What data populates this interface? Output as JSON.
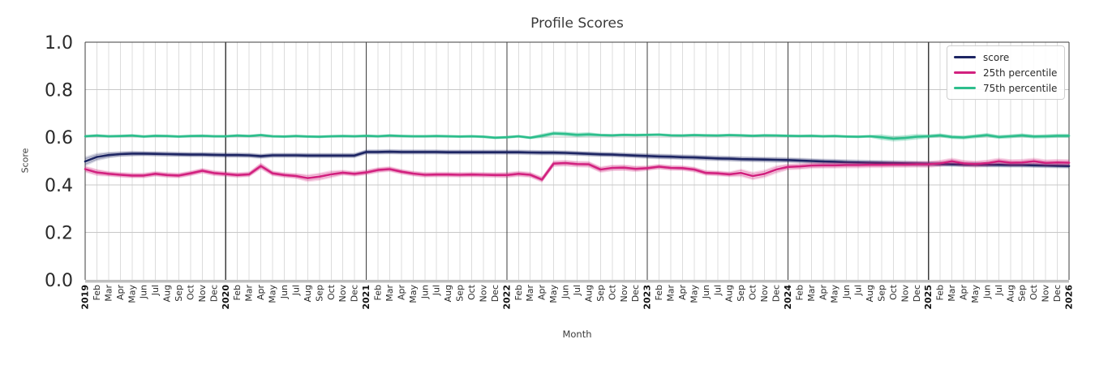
{
  "chart_data": {
    "type": "line",
    "title": "Profile Scores",
    "xlabel": "Month",
    "ylabel": "Score",
    "ylim": [
      0.0,
      1.0
    ],
    "yticks": [
      0.0,
      0.2,
      0.4,
      0.6,
      0.8,
      1.0
    ],
    "grid": true,
    "legend_position": "upper right",
    "x_tick_labels": [
      "2019",
      "Feb",
      "Mar",
      "Apr",
      "May",
      "Jun",
      "Jul",
      "Aug",
      "Sep",
      "Oct",
      "Nov",
      "Dec",
      "2020",
      "Feb",
      "Mar",
      "Apr",
      "May",
      "Jun",
      "Jul",
      "Aug",
      "Sep",
      "Oct",
      "Nov",
      "Dec",
      "2021",
      "Feb",
      "Mar",
      "Apr",
      "May",
      "Jun",
      "Jul",
      "Aug",
      "Sep",
      "Oct",
      "Nov",
      "Dec",
      "2022",
      "Feb",
      "Mar",
      "Apr",
      "May",
      "Jun",
      "Jul",
      "Aug",
      "Sep",
      "Oct",
      "Nov",
      "Dec",
      "2023",
      "Feb",
      "Mar",
      "Apr",
      "May",
      "Jun",
      "Jul",
      "Aug",
      "Sep",
      "Oct",
      "Nov",
      "Dec",
      "2024",
      "Feb",
      "Mar",
      "Apr",
      "May",
      "Jun",
      "Jul",
      "Aug",
      "Sep",
      "Oct",
      "Nov",
      "Dec",
      "2025",
      "Feb",
      "Mar",
      "Apr",
      "May",
      "Jun",
      "Jul",
      "Aug",
      "Sep",
      "Oct",
      "Nov",
      "Dec",
      "2026"
    ],
    "year_tick_indices": [
      0,
      12,
      24,
      36,
      48,
      60,
      72,
      84
    ],
    "series": [
      {
        "name": "score",
        "color": "#1d2563",
        "band_default": 0.011,
        "band_overrides": [
          [
            0,
            1,
            0.021
          ],
          [
            1,
            2,
            0.017
          ],
          [
            2,
            3,
            0.014
          ],
          [
            3,
            5,
            0.012
          ],
          [
            48,
            72,
            0.012
          ]
        ],
        "values": [
          0.498,
          0.517,
          0.525,
          0.529,
          0.531,
          0.531,
          0.53,
          0.529,
          0.528,
          0.527,
          0.527,
          0.526,
          0.525,
          0.525,
          0.524,
          0.52,
          0.524,
          0.524,
          0.524,
          0.523,
          0.523,
          0.523,
          0.523,
          0.523,
          0.538,
          0.538,
          0.539,
          0.538,
          0.538,
          0.538,
          0.538,
          0.537,
          0.537,
          0.537,
          0.537,
          0.537,
          0.537,
          0.537,
          0.536,
          0.535,
          0.535,
          0.534,
          0.532,
          0.53,
          0.528,
          0.527,
          0.525,
          0.523,
          0.521,
          0.519,
          0.518,
          0.516,
          0.515,
          0.513,
          0.511,
          0.51,
          0.508,
          0.507,
          0.506,
          0.505,
          0.504,
          0.502,
          0.5,
          0.498,
          0.497,
          0.495,
          0.494,
          0.493,
          0.492,
          0.491,
          0.49,
          0.489,
          0.488,
          0.487,
          0.486,
          0.485,
          0.485,
          0.484,
          0.484,
          0.483,
          0.483,
          0.482,
          0.481,
          0.48,
          0.479
        ]
      },
      {
        "name": "25th percentile",
        "color": "#d2217f",
        "band_default": 0.012,
        "band_overrides": [
          [
            0,
            2,
            0.015
          ],
          [
            15,
            16,
            0.015
          ],
          [
            19,
            22,
            0.017
          ],
          [
            36,
            40,
            0.013
          ],
          [
            40,
            48,
            0.014
          ],
          [
            56,
            60,
            0.018
          ],
          [
            60,
            72,
            0.014
          ],
          [
            72,
            85,
            0.015
          ]
        ],
        "values": [
          0.466,
          0.452,
          0.446,
          0.442,
          0.439,
          0.439,
          0.446,
          0.441,
          0.439,
          0.448,
          0.459,
          0.449,
          0.445,
          0.441,
          0.444,
          0.479,
          0.448,
          0.441,
          0.437,
          0.428,
          0.434,
          0.444,
          0.451,
          0.446,
          0.452,
          0.462,
          0.466,
          0.455,
          0.447,
          0.442,
          0.443,
          0.443,
          0.442,
          0.443,
          0.442,
          0.441,
          0.441,
          0.446,
          0.442,
          0.422,
          0.489,
          0.491,
          0.487,
          0.486,
          0.464,
          0.471,
          0.472,
          0.467,
          0.47,
          0.476,
          0.471,
          0.47,
          0.464,
          0.45,
          0.448,
          0.444,
          0.45,
          0.437,
          0.446,
          0.464,
          0.475,
          0.477,
          0.481,
          0.482,
          0.482,
          0.483,
          0.483,
          0.484,
          0.484,
          0.485,
          0.485,
          0.486,
          0.486,
          0.49,
          0.499,
          0.49,
          0.487,
          0.491,
          0.499,
          0.493,
          0.494,
          0.499,
          0.492,
          0.494,
          0.493
        ]
      },
      {
        "name": "75th percentile",
        "color": "#2dbe8c",
        "band_default": 0.006,
        "band_overrides": [
          [
            39,
            44,
            0.01
          ],
          [
            68,
            72,
            0.013
          ],
          [
            72,
            85,
            0.009
          ]
        ],
        "values": [
          0.604,
          0.607,
          0.604,
          0.605,
          0.607,
          0.603,
          0.606,
          0.605,
          0.603,
          0.605,
          0.606,
          0.604,
          0.604,
          0.607,
          0.605,
          0.609,
          0.604,
          0.603,
          0.605,
          0.603,
          0.602,
          0.604,
          0.605,
          0.604,
          0.606,
          0.604,
          0.607,
          0.605,
          0.604,
          0.604,
          0.605,
          0.604,
          0.603,
          0.604,
          0.602,
          0.598,
          0.6,
          0.604,
          0.598,
          0.606,
          0.616,
          0.614,
          0.61,
          0.612,
          0.609,
          0.608,
          0.61,
          0.609,
          0.61,
          0.611,
          0.608,
          0.607,
          0.609,
          0.608,
          0.607,
          0.609,
          0.608,
          0.606,
          0.608,
          0.607,
          0.606,
          0.605,
          0.606,
          0.604,
          0.605,
          0.603,
          0.602,
          0.604,
          0.6,
          0.594,
          0.597,
          0.602,
          0.604,
          0.608,
          0.601,
          0.599,
          0.604,
          0.609,
          0.601,
          0.604,
          0.608,
          0.603,
          0.604,
          0.606,
          0.606
        ]
      }
    ],
    "style": {
      "grid_month": "#dcdcdc",
      "grid_score": "#c8c8c8",
      "year_line": "#3d3d3d",
      "top_spine": "#3d3d3d",
      "bottom_spine": "#c0c0c0",
      "tick_text": "#2a2a2a",
      "year_text": "#111111"
    }
  }
}
